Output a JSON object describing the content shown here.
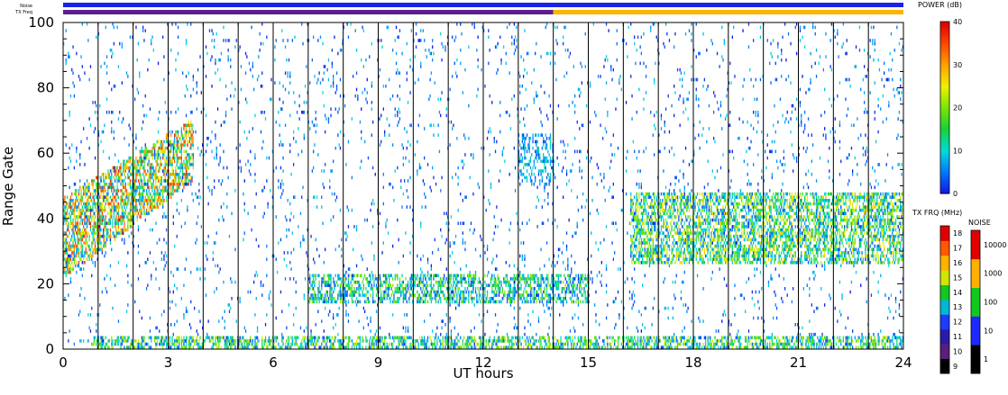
{
  "chart_data": {
    "type": "heatmap",
    "xlabel": "UT hours",
    "ylabel": "Range Gate",
    "xlim": [
      0,
      24
    ],
    "ylim": [
      0,
      100
    ],
    "xticks": [
      "0",
      "3",
      "6",
      "9",
      "12",
      "15",
      "18",
      "21",
      "24"
    ],
    "yticks": [
      "0",
      "20",
      "40",
      "60",
      "80",
      "100"
    ],
    "x_tick_values": [
      0,
      3,
      6,
      9,
      12,
      15,
      18,
      21,
      24
    ],
    "y_tick_values": [
      0,
      20,
      40,
      60,
      80,
      100
    ],
    "vertical_lines_hours": [
      1,
      2,
      3,
      4,
      5,
      6,
      7,
      8,
      9,
      10,
      11,
      12,
      13,
      14,
      15,
      16,
      17,
      18,
      19,
      20,
      21,
      22,
      23
    ],
    "power_colorbar": {
      "label": "POWER (dB)",
      "ticks": [
        "0",
        "10",
        "20",
        "30",
        "40"
      ],
      "tick_values": [
        0,
        10,
        20,
        30,
        40
      ],
      "range": [
        0,
        40
      ]
    },
    "txfreq_colorbar": {
      "label": "TX FRQ (MHz)",
      "ticks": [
        "9",
        "10",
        "11",
        "12",
        "13",
        "14",
        "15",
        "16",
        "17",
        "18"
      ],
      "colors": [
        "#000000",
        "#5a1f7a",
        "#2a1ba8",
        "#1c3cff",
        "#00b7d6",
        "#12c81e",
        "#cfe600",
        "#ffb100",
        "#ff5a00",
        "#e00000"
      ]
    },
    "noise_colorbar": {
      "label": "NOISE",
      "ticks": [
        "1",
        "10",
        "100",
        "1000",
        "10000"
      ],
      "colors": [
        "#000000",
        "#1c2aff",
        "#12c81e",
        "#ffb100",
        "#e00000"
      ]
    },
    "top_bars": {
      "noise_label": "Noise",
      "txfreq_label": "TX Freq",
      "noise_color": "#1a22e6",
      "txfreq_segments": [
        {
          "from": 0,
          "to": 14,
          "color": "#5a1f8c"
        },
        {
          "from": 14,
          "to": 24,
          "color": "#ffb300"
        }
      ]
    },
    "echo_regions": [
      {
        "name": "near-range band",
        "t": [
          0.8,
          24
        ],
        "gate": [
          0,
          4
        ],
        "density": 0.55,
        "power": [
          2,
          25
        ]
      },
      {
        "name": "rising trace",
        "t": [
          0,
          3.7
        ],
        "gate_start": [
          22,
          46
        ],
        "gate_end": [
          52,
          70
        ],
        "density": 0.6,
        "power": [
          4,
          38
        ]
      },
      {
        "name": "midday band",
        "t": [
          7,
          15
        ],
        "gate": [
          14,
          23
        ],
        "density": 0.5,
        "power": [
          2,
          22
        ]
      },
      {
        "name": "evening band",
        "t": [
          16.2,
          24
        ],
        "gate": [
          26,
          48
        ],
        "density": 0.55,
        "power": [
          3,
          28
        ]
      },
      {
        "name": "patch 13-14h",
        "t": [
          13,
          14
        ],
        "gate": [
          50,
          66
        ],
        "density": 0.35,
        "power": [
          2,
          12
        ]
      },
      {
        "name": "sparse scatter",
        "t": [
          0,
          24
        ],
        "gate": [
          0,
          100
        ],
        "density": 0.04,
        "power": [
          0,
          10
        ]
      }
    ]
  }
}
